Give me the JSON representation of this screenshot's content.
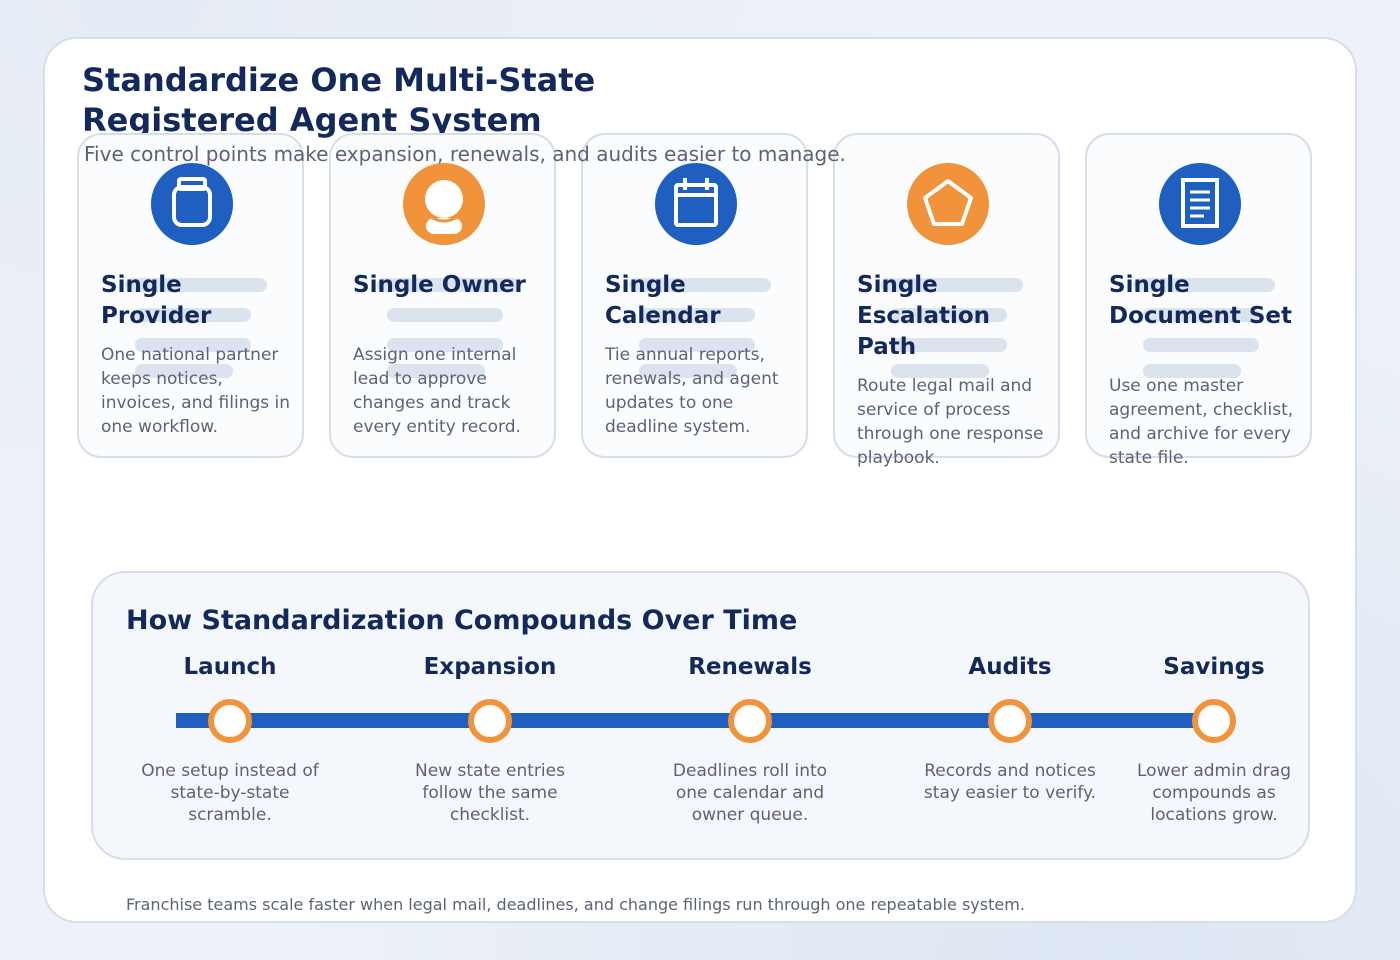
{
  "header": {
    "title": "Standardize One Multi-State Registered Agent System",
    "subtitle": "Five control points make expansion, renewals, and audits easier to manage."
  },
  "colors": {
    "navy": "#13295b",
    "blue": "#1f5fbf",
    "orange": "#f0933a",
    "muted_text": "#5b6477"
  },
  "control_points": [
    {
      "title": "Single Provider",
      "description": "One national partner keeps notices, invoices, and filings in one workflow.",
      "icon": "jar-icon",
      "icon_color": "#1f5fbf"
    },
    {
      "title": "Single Owner",
      "description": "Assign one internal lead to approve changes and track every entity record.",
      "icon": "person-icon",
      "icon_color": "#f0933a"
    },
    {
      "title": "Single Calendar",
      "description": "Tie annual reports, renewals, and agent updates to one deadline system.",
      "icon": "calendar-icon",
      "icon_color": "#1f5fbf"
    },
    {
      "title": "Single Escalation Path",
      "description": "Route legal mail and service of process through one response playbook.",
      "icon": "pentagon-icon",
      "icon_color": "#f0933a"
    },
    {
      "title": "Single Document Set",
      "description": "Use one master agreement, checklist, and archive for every state file.",
      "icon": "document-icon",
      "icon_color": "#1f5fbf"
    }
  ],
  "timeline": {
    "title": "How Standardization Compounds Over Time",
    "stages": [
      {
        "label": "Launch",
        "description": "One setup instead of state-by-state scramble."
      },
      {
        "label": "Expansion",
        "description": "New state entries follow the same checklist."
      },
      {
        "label": "Renewals",
        "description": "Deadlines roll into one calendar and owner queue."
      },
      {
        "label": "Audits",
        "description": "Records and notices stay easier to verify."
      },
      {
        "label": "Savings",
        "description": "Lower admin drag compounds as locations grow."
      }
    ]
  },
  "footer": {
    "note": "Franchise teams scale faster when legal mail, deadlines, and change filings run through one repeatable system."
  }
}
